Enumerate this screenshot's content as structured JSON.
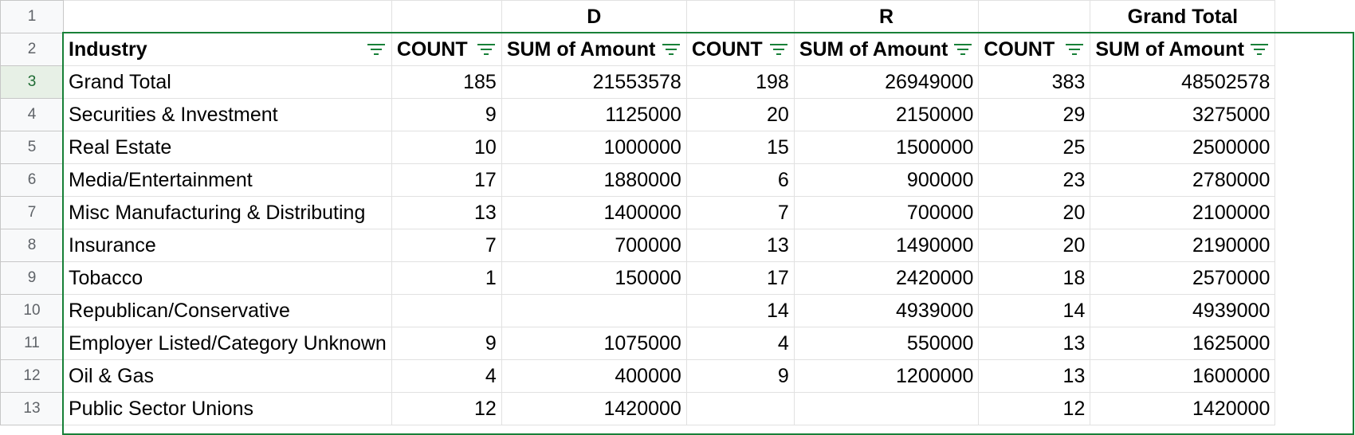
{
  "row_numbers": [
    "1",
    "2",
    "3",
    "4",
    "5",
    "6",
    "7",
    "8",
    "9",
    "10",
    "11",
    "12",
    "13"
  ],
  "groups": {
    "d": "D",
    "r": "R",
    "total": "Grand Total"
  },
  "headers": {
    "industry": "Industry",
    "count": "COUNT",
    "sum": "SUM of Amount"
  },
  "rows": [
    {
      "industry": "Grand Total",
      "d_count": "185",
      "d_sum": "21553578",
      "r_count": "198",
      "r_sum": "26949000",
      "t_count": "383",
      "t_sum": "48502578"
    },
    {
      "industry": "Securities & Investment",
      "d_count": "9",
      "d_sum": "1125000",
      "r_count": "20",
      "r_sum": "2150000",
      "t_count": "29",
      "t_sum": "3275000"
    },
    {
      "industry": "Real Estate",
      "d_count": "10",
      "d_sum": "1000000",
      "r_count": "15",
      "r_sum": "1500000",
      "t_count": "25",
      "t_sum": "2500000"
    },
    {
      "industry": "Media/Entertainment",
      "d_count": "17",
      "d_sum": "1880000",
      "r_count": "6",
      "r_sum": "900000",
      "t_count": "23",
      "t_sum": "2780000"
    },
    {
      "industry": "Misc Manufacturing & Distributing",
      "d_count": "13",
      "d_sum": "1400000",
      "r_count": "7",
      "r_sum": "700000",
      "t_count": "20",
      "t_sum": "2100000"
    },
    {
      "industry": "Insurance",
      "d_count": "7",
      "d_sum": "700000",
      "r_count": "13",
      "r_sum": "1490000",
      "t_count": "20",
      "t_sum": "2190000"
    },
    {
      "industry": "Tobacco",
      "d_count": "1",
      "d_sum": "150000",
      "r_count": "17",
      "r_sum": "2420000",
      "t_count": "18",
      "t_sum": "2570000"
    },
    {
      "industry": "Republican/Conservative",
      "d_count": "",
      "d_sum": "",
      "r_count": "14",
      "r_sum": "4939000",
      "t_count": "14",
      "t_sum": "4939000"
    },
    {
      "industry": "Employer Listed/Category Unknown",
      "d_count": "9",
      "d_sum": "1075000",
      "r_count": "4",
      "r_sum": "550000",
      "t_count": "13",
      "t_sum": "1625000"
    },
    {
      "industry": "Oil & Gas",
      "d_count": "4",
      "d_sum": "400000",
      "r_count": "9",
      "r_sum": "1200000",
      "t_count": "13",
      "t_sum": "1600000"
    },
    {
      "industry": "Public Sector Unions",
      "d_count": "12",
      "d_sum": "1420000",
      "r_count": "",
      "r_sum": "",
      "t_count": "12",
      "t_sum": "1420000"
    }
  ],
  "colors": {
    "accent": "#188038",
    "row_header_bg": "#f8f9fa",
    "active_row_header_bg": "#e7f0e6",
    "grid": "#e1e1e1"
  },
  "icons": {
    "filter": "filter-icon"
  }
}
